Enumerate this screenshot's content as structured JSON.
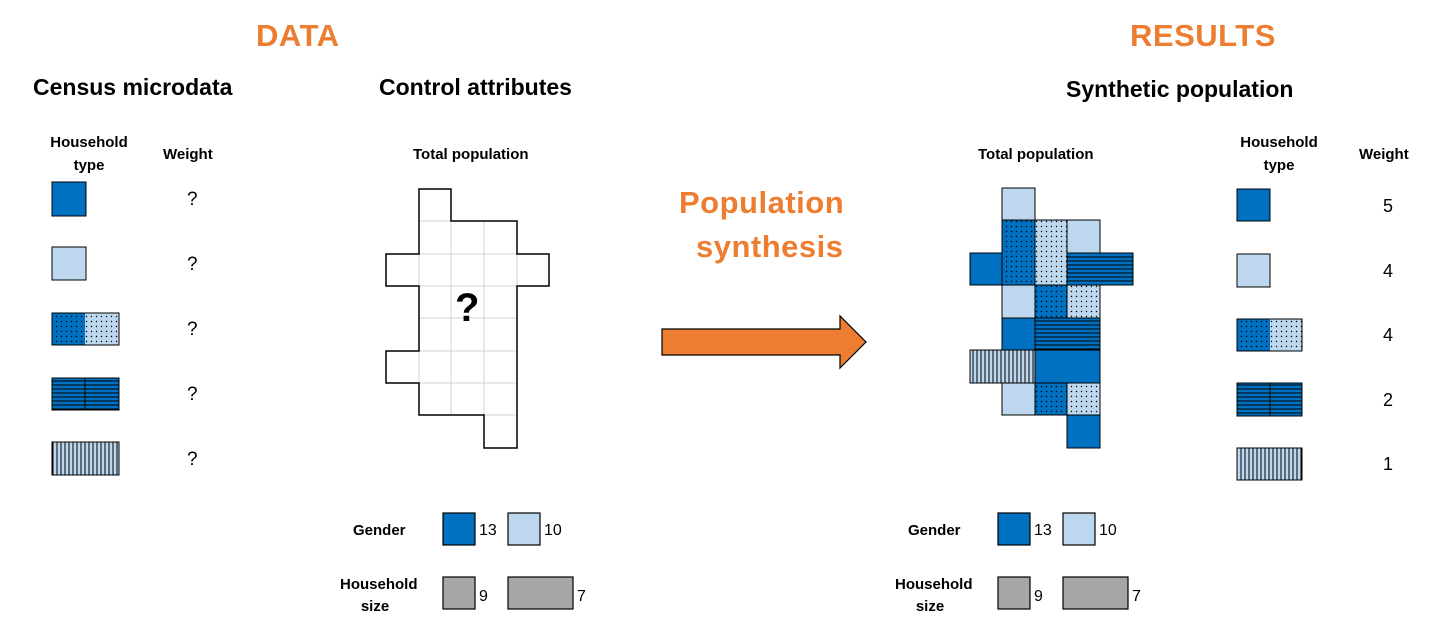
{
  "data_header": "DATA",
  "results_header": "RESULTS",
  "census": {
    "title": "Census microdata",
    "col_household_type": "Household type",
    "col_weight": "Weight",
    "types": [
      {
        "name": "dark-blue-square-icon",
        "weight": "?"
      },
      {
        "name": "light-blue-square-icon",
        "weight": "?"
      },
      {
        "name": "dotted-pair-icon",
        "weight": "?"
      },
      {
        "name": "horizontal-striped-pair-icon",
        "weight": "?"
      },
      {
        "name": "vertical-striped-rect-icon",
        "weight": "?"
      }
    ]
  },
  "control": {
    "title": "Control attributes",
    "total_population": "Total population",
    "unknown_mark": "?",
    "gender_label": "Gender",
    "gender_values": [
      "13",
      "10"
    ],
    "household_size_label": "Household size",
    "household_size_values": [
      "9",
      "7"
    ]
  },
  "process": {
    "label_line1": "Population",
    "label_line2": "synthesis"
  },
  "synthetic": {
    "title": "Synthetic population",
    "total_population": "Total population",
    "col_household_type": "Household type",
    "col_weight": "Weight",
    "weights": [
      "5",
      "4",
      "4",
      "2",
      "1"
    ],
    "gender_label": "Gender",
    "gender_values": [
      "13",
      "10"
    ],
    "household_size_label": "Household size",
    "household_size_values": [
      "9",
      "7"
    ]
  },
  "colors": {
    "orange": "#ED7D31",
    "dark_blue": "#0070C0",
    "light_blue": "#BDD7EE",
    "grey": "#A6A6A6"
  }
}
